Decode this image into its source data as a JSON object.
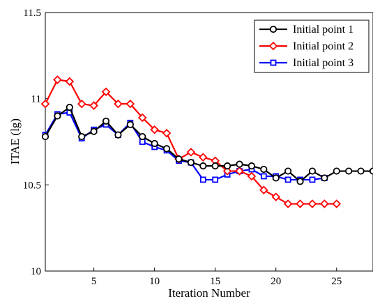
{
  "chart_data": {
    "type": "line",
    "xlabel": "Iteration Number",
    "ylabel": "ITAE (lg)",
    "xlim": [
      1,
      28
    ],
    "ylim": [
      10,
      11.5
    ],
    "xticks": [
      5,
      10,
      15,
      20,
      25
    ],
    "yticks": [
      10,
      10.5,
      11,
      11.5
    ],
    "ytick_labels": [
      "10",
      "10.5",
      "11",
      "11.5"
    ],
    "grid": false,
    "legend_position": "top-right",
    "series": [
      {
        "name": "Initial point 1",
        "color": "#000000",
        "marker": "circle",
        "x": [
          1,
          2,
          3,
          4,
          5,
          6,
          7,
          8,
          9,
          10,
          11,
          12,
          13,
          14,
          15,
          16,
          17,
          18,
          19,
          20,
          21,
          22,
          23,
          24,
          25,
          26,
          27,
          28
        ],
        "y": [
          10.78,
          10.9,
          10.95,
          10.78,
          10.81,
          10.87,
          10.79,
          10.85,
          10.78,
          10.74,
          10.71,
          10.65,
          10.63,
          10.61,
          10.61,
          10.61,
          10.62,
          10.61,
          10.59,
          10.54,
          10.58,
          10.52,
          10.58,
          10.54,
          10.58,
          10.58,
          10.58,
          10.58
        ]
      },
      {
        "name": "Initial point 2",
        "color": "#ff0000",
        "marker": "diamond",
        "x": [
          1,
          2,
          3,
          4,
          5,
          6,
          7,
          8,
          9,
          10,
          11,
          12,
          13,
          14,
          15,
          16,
          17,
          18,
          19,
          20,
          21,
          22,
          23,
          24,
          25
        ],
        "y": [
          10.97,
          11.11,
          11.1,
          10.97,
          10.96,
          11.04,
          10.97,
          10.97,
          10.89,
          10.82,
          10.8,
          10.65,
          10.69,
          10.66,
          10.64,
          10.58,
          10.58,
          10.55,
          10.47,
          10.43,
          10.39,
          10.39,
          10.39,
          10.39,
          10.39
        ]
      },
      {
        "name": "Initial point 3",
        "color": "#0000ff",
        "marker": "square",
        "x": [
          1,
          2,
          3,
          4,
          5,
          6,
          7,
          8,
          9,
          10,
          11,
          12,
          13,
          14,
          15,
          16,
          17,
          18,
          19,
          20,
          21,
          22,
          23,
          24
        ],
        "y": [
          10.79,
          10.91,
          10.92,
          10.77,
          10.82,
          10.85,
          10.79,
          10.86,
          10.75,
          10.72,
          10.7,
          10.64,
          10.63,
          10.53,
          10.53,
          10.56,
          10.58,
          10.59,
          10.55,
          10.55,
          10.53,
          10.53,
          10.53,
          10.54
        ]
      }
    ]
  }
}
